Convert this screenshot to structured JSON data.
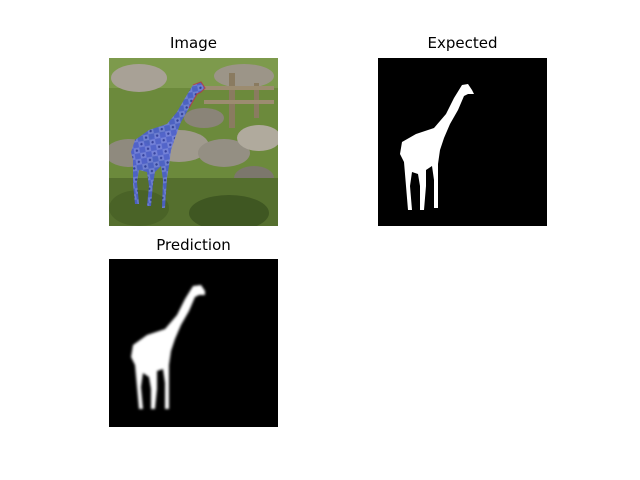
{
  "figure": {
    "panels": [
      {
        "title": "Image"
      },
      {
        "title": "Expected"
      },
      {
        "title": "Prediction"
      }
    ]
  },
  "colors": {
    "background": "#ffffff",
    "mask_background": "#000000",
    "mask_foreground": "#ffffff",
    "overlay_tint": "#4a5fd1",
    "foliage_green": "#6c8a3c",
    "rock_gray": "#8f8a7e"
  }
}
